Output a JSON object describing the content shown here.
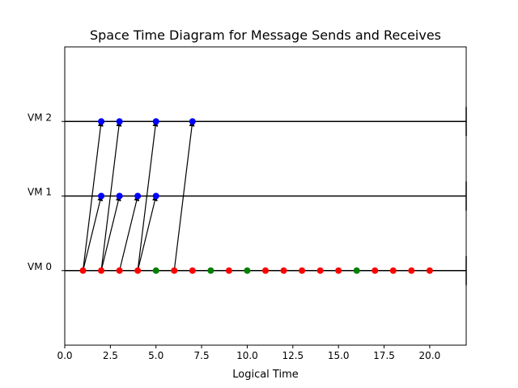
{
  "chart_data": {
    "type": "scatter",
    "title": "Space Time Diagram for Message Sends and Receives",
    "xlabel": "Logical Time",
    "ylabel": "",
    "xlim": [
      0,
      22
    ],
    "ylim": [
      -1,
      3
    ],
    "x_ticks": [
      "0.0",
      "2.5",
      "5.0",
      "7.5",
      "10.0",
      "12.5",
      "15.0",
      "17.5",
      "20.0"
    ],
    "x_tick_values": [
      0,
      2.5,
      5,
      7.5,
      10,
      12.5,
      15,
      17.5,
      20
    ],
    "y_ticks": [
      "VM 0",
      "VM 1",
      "VM 2"
    ],
    "y_tick_values": [
      0,
      1,
      2
    ],
    "grid": false,
    "timelines": [
      {
        "label": "VM 0",
        "y": 0,
        "x_end": 22
      },
      {
        "label": "VM 1",
        "y": 1,
        "x_end": 22
      },
      {
        "label": "VM 2",
        "y": 2,
        "x_end": 22
      }
    ],
    "events": [
      {
        "x": 1,
        "y": 0,
        "color": "#ff0000"
      },
      {
        "x": 2,
        "y": 0,
        "color": "#ff0000"
      },
      {
        "x": 3,
        "y": 0,
        "color": "#ff0000"
      },
      {
        "x": 4,
        "y": 0,
        "color": "#ff0000"
      },
      {
        "x": 5,
        "y": 0,
        "color": "#008000"
      },
      {
        "x": 6,
        "y": 0,
        "color": "#ff0000"
      },
      {
        "x": 7,
        "y": 0,
        "color": "#ff0000"
      },
      {
        "x": 8,
        "y": 0,
        "color": "#008000"
      },
      {
        "x": 9,
        "y": 0,
        "color": "#ff0000"
      },
      {
        "x": 10,
        "y": 0,
        "color": "#008000"
      },
      {
        "x": 11,
        "y": 0,
        "color": "#ff0000"
      },
      {
        "x": 12,
        "y": 0,
        "color": "#ff0000"
      },
      {
        "x": 13,
        "y": 0,
        "color": "#ff0000"
      },
      {
        "x": 14,
        "y": 0,
        "color": "#ff0000"
      },
      {
        "x": 15,
        "y": 0,
        "color": "#ff0000"
      },
      {
        "x": 16,
        "y": 0,
        "color": "#008000"
      },
      {
        "x": 17,
        "y": 0,
        "color": "#ff0000"
      },
      {
        "x": 18,
        "y": 0,
        "color": "#ff0000"
      },
      {
        "x": 19,
        "y": 0,
        "color": "#ff0000"
      },
      {
        "x": 20,
        "y": 0,
        "color": "#ff0000"
      },
      {
        "x": 2,
        "y": 1,
        "color": "#0000ff"
      },
      {
        "x": 3,
        "y": 1,
        "color": "#0000ff"
      },
      {
        "x": 4,
        "y": 1,
        "color": "#0000ff"
      },
      {
        "x": 5,
        "y": 1,
        "color": "#0000ff"
      },
      {
        "x": 2,
        "y": 2,
        "color": "#0000ff"
      },
      {
        "x": 3,
        "y": 2,
        "color": "#0000ff"
      },
      {
        "x": 5,
        "y": 2,
        "color": "#0000ff"
      },
      {
        "x": 7,
        "y": 2,
        "color": "#0000ff"
      }
    ],
    "messages": [
      {
        "from": [
          1,
          0
        ],
        "to": [
          2,
          1
        ]
      },
      {
        "from": [
          1,
          0
        ],
        "to": [
          2,
          2
        ]
      },
      {
        "from": [
          2,
          0
        ],
        "to": [
          3,
          1
        ]
      },
      {
        "from": [
          2,
          0
        ],
        "to": [
          3,
          2
        ]
      },
      {
        "from": [
          3,
          0
        ],
        "to": [
          4,
          1
        ]
      },
      {
        "from": [
          4,
          0
        ],
        "to": [
          5,
          1
        ]
      },
      {
        "from": [
          4,
          0
        ],
        "to": [
          5,
          2
        ]
      },
      {
        "from": [
          6,
          0
        ],
        "to": [
          7,
          2
        ]
      }
    ]
  }
}
